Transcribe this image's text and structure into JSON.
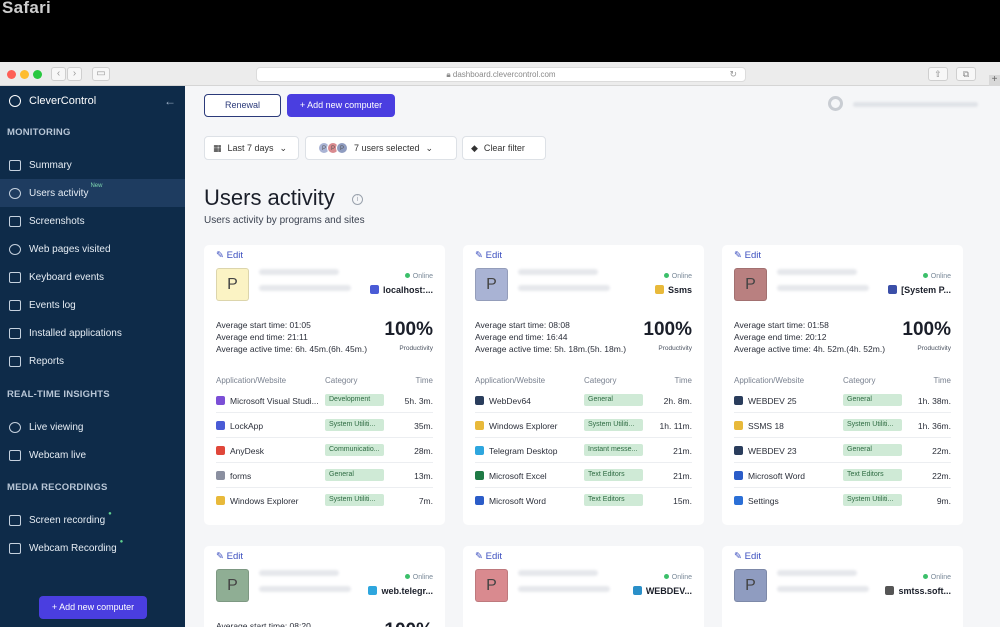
{
  "browser": {
    "label": "Safari",
    "url": "dashboard.clevercontrol.com"
  },
  "sidebar": {
    "brand": "CleverControl",
    "sections": {
      "monitoring": "MONITORING",
      "realtime": "REAL-TIME INSIGHTS",
      "media": "MEDIA RECORDINGS"
    },
    "items": [
      {
        "label": "Summary",
        "icon": "summary-icon"
      },
      {
        "label": "Users activity",
        "icon": "users-icon",
        "badge": "New"
      },
      {
        "label": "Screenshots",
        "icon": "screen-icon"
      },
      {
        "label": "Web pages visited",
        "icon": "globe-icon"
      },
      {
        "label": "Keyboard events",
        "icon": "keyboard-icon"
      },
      {
        "label": "Events log",
        "icon": "list-icon"
      },
      {
        "label": "Installed applications",
        "icon": "apps-icon"
      },
      {
        "label": "Reports",
        "icon": "grid-icon"
      },
      {
        "label": "Live viewing",
        "icon": "eye-icon"
      },
      {
        "label": "Webcam live",
        "icon": "camera-icon"
      },
      {
        "label": "Screen recording",
        "icon": "record-icon"
      },
      {
        "label": "Webcam Recording",
        "icon": "webcam-icon"
      }
    ],
    "add_button": "+ Add new computer"
  },
  "toolbar": {
    "renewal": "Renewal",
    "add_computer": "+ Add new computer"
  },
  "filters": {
    "period": "Last 7 days",
    "users": "7 users selected",
    "clear": "Clear filter"
  },
  "page": {
    "title": "Users activity",
    "subtitle": "Users activity by programs and sites"
  },
  "labels": {
    "edit": "Edit",
    "online": "Online",
    "productivity": "Productivity",
    "col_app": "Application/Website",
    "col_category": "Category",
    "col_time": "Time"
  },
  "cards": [
    {
      "initial": "P",
      "color": "#fbf3c4",
      "top_app": "localhost:...",
      "top_icon_color": "#4a5bd6",
      "start": "Average start time: 01:05",
      "end": "Average end time: 21:11",
      "active": "Average active time: 6h. 45m.(6h. 45m.)",
      "productivity": "100%",
      "rows": [
        {
          "name": "Microsoft Visual Studi...",
          "cat": "Development",
          "time": "5h. 3m.",
          "ic": "#7b4fd6"
        },
        {
          "name": "LockApp",
          "cat": "System Utiliti...",
          "time": "35m.",
          "ic": "#4a5bd6"
        },
        {
          "name": "AnyDesk",
          "cat": "Communicatio...",
          "time": "28m.",
          "ic": "#e0473a"
        },
        {
          "name": "forms",
          "cat": "General",
          "time": "13m.",
          "ic": "#8a8fa0"
        },
        {
          "name": "Windows Explorer",
          "cat": "System Utiliti...",
          "time": "7m.",
          "ic": "#e8b93a"
        }
      ]
    },
    {
      "initial": "P",
      "color": "#a9b3d4",
      "top_app": "Ssms",
      "top_icon_color": "#e8b93a",
      "start": "Average start time: 08:08",
      "end": "Average end time: 16:44",
      "active": "Average active time: 5h. 18m.(5h. 18m.)",
      "productivity": "100%",
      "rows": [
        {
          "name": "WebDev64",
          "cat": "General",
          "time": "2h. 8m.",
          "ic": "#2a3d5c"
        },
        {
          "name": "Windows Explorer",
          "cat": "System Utiliti...",
          "time": "1h. 11m.",
          "ic": "#e8b93a"
        },
        {
          "name": "Telegram Desktop",
          "cat": "Instant messe...",
          "time": "21m.",
          "ic": "#2ea6de"
        },
        {
          "name": "Microsoft Excel",
          "cat": "Text Editors",
          "time": "21m.",
          "ic": "#1f7a45"
        },
        {
          "name": "Microsoft Word",
          "cat": "Text Editors",
          "time": "15m.",
          "ic": "#2b5cc8"
        }
      ]
    },
    {
      "initial": "P",
      "color": "#b98080",
      "top_app": "[System P...",
      "top_icon_color": "#3b4fa8",
      "start": "Average start time: 01:58",
      "end": "Average end time: 20:12",
      "active": "Average active time: 4h. 52m.(4h. 52m.)",
      "productivity": "100%",
      "rows": [
        {
          "name": "WEBDEV 25",
          "cat": "General",
          "time": "1h. 38m.",
          "ic": "#2a3d5c"
        },
        {
          "name": "SSMS 18",
          "cat": "System Utiliti...",
          "time": "1h. 36m.",
          "ic": "#e8b93a"
        },
        {
          "name": "WEBDEV 23",
          "cat": "General",
          "time": "22m.",
          "ic": "#2a3d5c"
        },
        {
          "name": "Microsoft Word",
          "cat": "Text Editors",
          "time": "22m.",
          "ic": "#2b5cc8"
        },
        {
          "name": "Settings",
          "cat": "System Utiliti...",
          "time": "9m.",
          "ic": "#2b6fd6"
        }
      ]
    },
    {
      "initial": "P",
      "color": "#8fae94",
      "top_app": "web.telegr...",
      "top_icon_color": "#2ea6de",
      "start": "Average start time: 08:20",
      "productivity": "100%"
    },
    {
      "initial": "P",
      "color": "#d98a8f",
      "top_app": "WEBDEV...",
      "top_icon_color": "#2a8fc8"
    },
    {
      "initial": "P",
      "color": "#8f9cc0",
      "top_app": "smtss.soft...",
      "top_icon_color": "#555"
    }
  ]
}
